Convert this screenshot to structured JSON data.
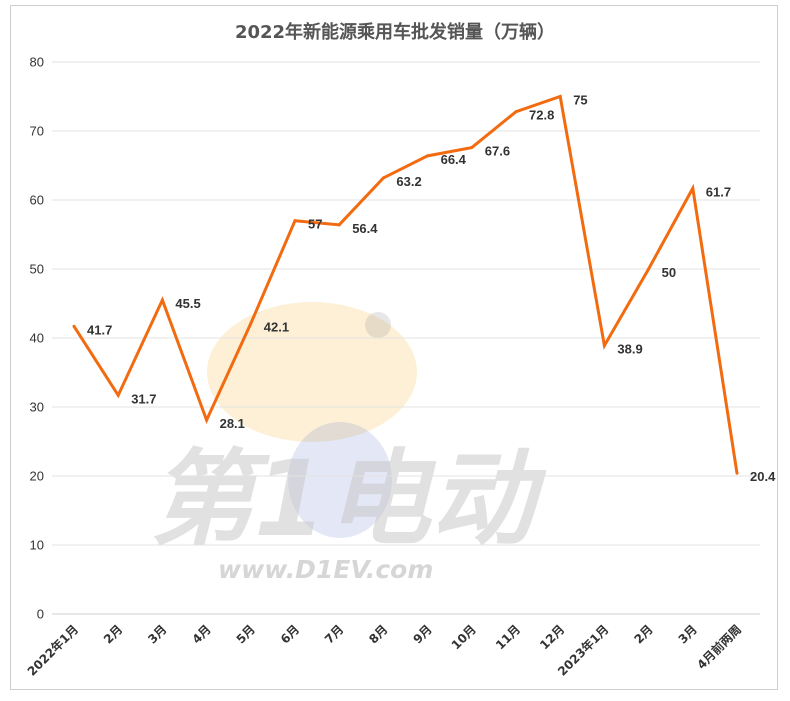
{
  "watermark": {
    "logo_text": "第1电动",
    "url": "www.D1EV.com"
  },
  "chart_data": {
    "type": "line",
    "title": "2022年新能源乘用车批发销量（万辆）",
    "xlabel": "",
    "ylabel": "",
    "categories": [
      "2022年1月",
      "2月",
      "3月",
      "4月",
      "5月",
      "6月",
      "7月",
      "8月",
      "9月",
      "10月",
      "11月",
      "12月",
      "2023年1月",
      "2月",
      "3月",
      "4月前两周"
    ],
    "series": [
      {
        "values": [
          41.7,
          31.7,
          45.5,
          28.1,
          42.1,
          57,
          56.4,
          63.2,
          66.4,
          67.6,
          72.8,
          75,
          38.9,
          50,
          61.7,
          20.4
        ],
        "color": "#F26B10"
      }
    ],
    "ylim": [
      0,
      80
    ],
    "yticks": [
      0,
      10,
      20,
      30,
      40,
      50,
      60,
      70,
      80
    ],
    "grid": true,
    "data_labels": true,
    "legend": "none",
    "colors": {
      "gridline": "#e3e3e3",
      "border": "#cfcfcf",
      "line": "#F26B10"
    }
  }
}
